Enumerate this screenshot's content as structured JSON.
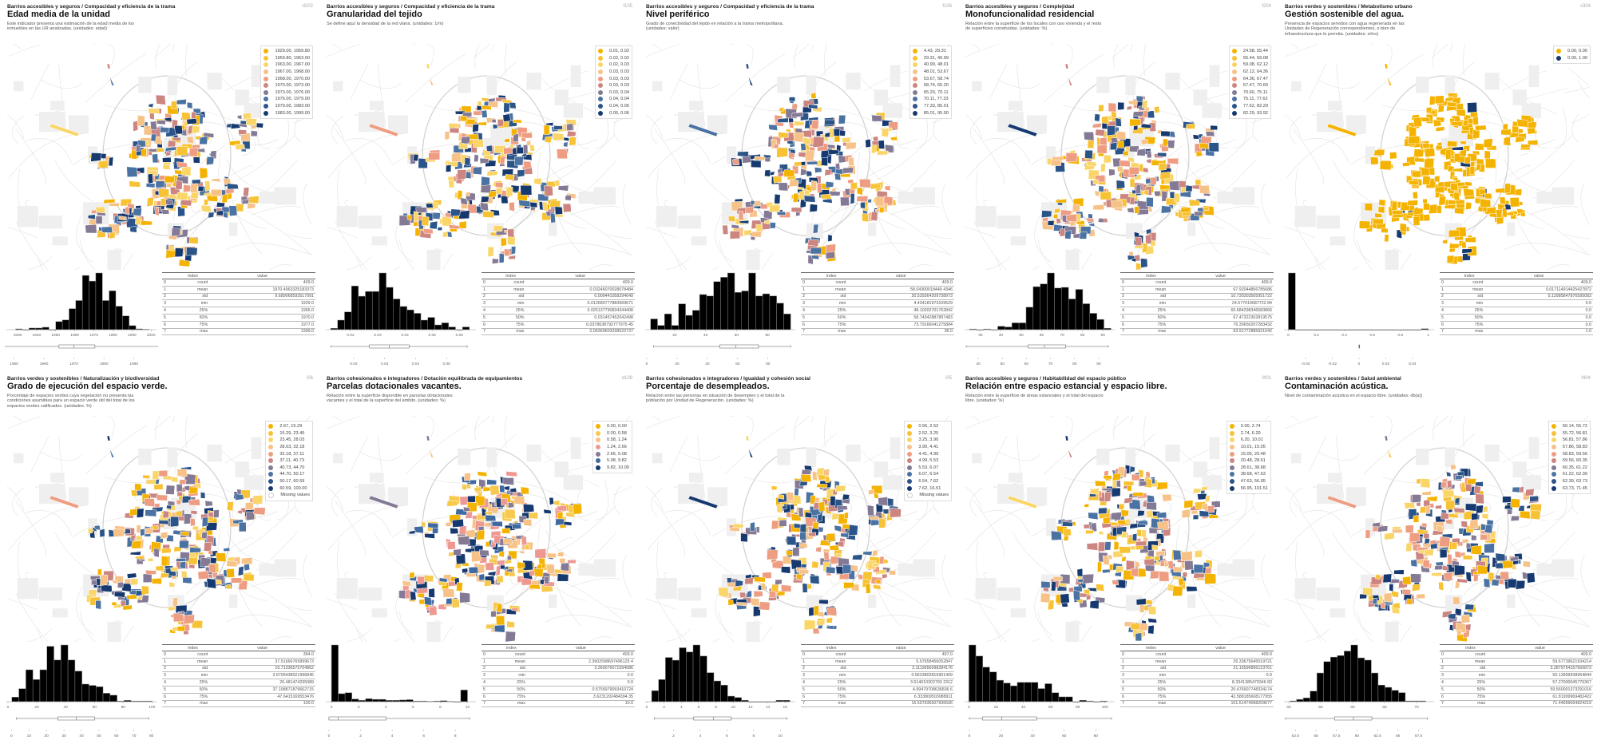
{
  "palette_10": [
    "#f5b301",
    "#f7c233",
    "#fad567",
    "#f7c287",
    "#ee9d82",
    "#cc8580",
    "#857a95",
    "#4a72a2",
    "#2b5488",
    "#163a70"
  ],
  "palette_7": [
    "#f5b301",
    "#f7c94d",
    "#f7c287",
    "#ee9891",
    "#857a95",
    "#3f6aa1",
    "#163a70"
  ],
  "palette_2": [
    "#f5b301",
    "#163a70"
  ],
  "stats_headers": {
    "index": "index",
    "value": "value"
  },
  "stats_labels": [
    "count",
    "mean",
    "std",
    "min",
    "25%",
    "50%",
    "75%",
    "max"
  ],
  "stats_indices": [
    "0",
    "1",
    "2",
    "3",
    "4",
    "5",
    "6",
    "7"
  ],
  "missing_label": "Missing values",
  "panels": [
    {
      "crumb": "Barrios accesibles y seguros / Compacidad y eficiencia de la trama",
      "title": "Edad media de la unidad",
      "code": "d202",
      "desc": "Este indicador presenta una estimación de la edad media de los inmuebles en las UR analizadas. (unidades: edad)",
      "legend": [
        "1929.00, 1959.80",
        "1959.80, 1963.00",
        "1963.00, 1967.00",
        "1967.00, 1968.00",
        "1968.00, 1970.00",
        "1970.00, 1973.00",
        "1973.00, 1976.00",
        "1976.00, 1979.00",
        "1979.00, 1983.00",
        "1983.00, 1999.00"
      ],
      "missing": false,
      "stats": [
        "409.0",
        "1970.4963325183373",
        "9.689068593517991",
        "1929.0",
        "1965.0",
        "1970.0",
        "1977.0",
        "1999.0"
      ]
    },
    {
      "crumb": "Barrios accesibles y seguros / Compacidad y eficiencia de la trama",
      "title": "Granularidad del tejido",
      "code": "f105",
      "desc": "Se define aquí la densidad de la red viaria. (unidades: 1/m)",
      "legend": [
        "0.01, 0.02",
        "0.02, 0.02",
        "0.02, 0.03",
        "0.03, 0.03",
        "0.03, 0.03",
        "0.03, 0.03",
        "0.03, 0.04",
        "0.04, 0.04",
        "0.04, 0.05",
        "0.05, 0.06"
      ],
      "missing": false,
      "stats": [
        "409.0",
        "0.03246070028078484",
        "0.009441058294649",
        "0.012680777883569671",
        "0.025137790834344408",
        "0.031457452042498",
        "0.0378638792777975 45",
        "0.06369603298522737"
      ]
    },
    {
      "crumb": "Barrios accesibles y seguros / Compacidad y eficiencia de la trama",
      "title": "Nivel periférico",
      "code": "f106",
      "desc": "Grado de conectividad del tejido en relación a la trama metropolitana. (unidades: valor)",
      "legend": [
        "4.43, 29.31",
        "29.31, 40.99",
        "40.99, 48.01",
        "48.01, 53.67",
        "53.67, 58.74",
        "58.74, 65.20",
        "65.20, 70.11",
        "70.11, 77.33",
        "77.33, 85.01",
        "85.01, 95.00"
      ],
      "missing": false,
      "stats": [
        "409.0",
        "58.04300018449 4346",
        "20.539364209738973",
        "4.434181973109529",
        "48.10202701762842",
        "58.74342887897483",
        "73.79166041275884",
        "95.0"
      ]
    },
    {
      "crumb": "Barrios accesibles y seguros / Complejidad",
      "title": "Monofuncionalidad residencial",
      "code": "f204",
      "desc": "Relación entre la superficie de los locales con uso vivienda y el resto de superficies construidas. (unidades: %)",
      "legend": [
        "24.58, 55.44",
        "55.44, 59.08",
        "59.08, 62.12",
        "62.12, 64.36",
        "64.36, 67.47",
        "67.47, 70.60",
        "70.60, 75.11",
        "75.11, 77.62",
        "77.62, 82.29",
        "82.29, 93.92"
      ],
      "missing": false,
      "stats": [
        "409.0",
        "67.92044866785686",
        "10.730303505951722",
        "24.577019087722 84",
        "60.684298346583866",
        "67.47322302819575",
        "76.30650207283432",
        "93.91772885921042"
      ]
    },
    {
      "crumb": "Barrios verdes y sostenibles / Metabolismo urbano",
      "title": "Gestión sostenible del agua.",
      "code": "v304",
      "desc": "Presencia de espacios servidos con agua regenerada en las Unidades de Regeneración correspondientes, o bien de infraestructura que lo permita. (unidades: si/no)",
      "legend": [
        "0.00, 0.00",
        "0.00, 1.00"
      ],
      "missing": false,
      "stats": [
        "409.0",
        "0.017114914425427872",
        "0.12985847876595083",
        "0.0",
        "0.0",
        "0.0",
        "0.0",
        "1.0"
      ]
    },
    {
      "crumb": "Barrios verdes y sostenibles / Naturalización y biodiversidad",
      "title": "Grado de ejecución del espacio verde.",
      "code": "i06",
      "desc": "Porcentaje de espacios verdes cuya vegetación no presenta las condiciones asumibles para un espacio verde útil del total de los espacios verdes calificados. (unidades: %)",
      "legend": [
        "2.67, 15.29",
        "15.29, 23.45",
        "23.45, 28.03",
        "28.03, 32.18",
        "32.18, 37.11",
        "37.11, 40.73",
        "40.73, 44.70",
        "44.70, 50.17",
        "50.17, 60.59",
        "60.59, 100.00"
      ],
      "missing": true,
      "stats": [
        "394.0",
        "37.51666765899673",
        "16.71336575704862",
        "2.6705438021996846",
        "26.481474295089",
        "37.108871879662715",
        "47.6415169553476",
        "100.0"
      ]
    },
    {
      "crumb": "Barrios cohesionados e integradores / Dotación equilibrada de equipamientos",
      "title": "Parcelas dotacionales vacantes.",
      "code": "d109",
      "desc": "Relación entre la superficie disponible en parcelas dotacionales vacantes y el total de la superficie del ámbito. (unidades: %)",
      "legend": [
        "0.00, 0.00",
        "0.00, 0.58",
        "0.58, 1.24",
        "1.24, 2.66",
        "2.66, 5.08",
        "5.08, 9.82",
        "9.82, 10.00"
      ],
      "missing": false,
      "stats": [
        "409.0",
        "2.3602598697496125 4",
        "3.369076571594086",
        "0.0",
        "0.0",
        "0.5755979093410724",
        "3.6231202484394 35",
        "10.0"
      ]
    },
    {
      "crumb": "Barrios cohesionados e integradores / Igualdad y cohesión social",
      "title": "Porcentaje de desempleados.",
      "code": "i05",
      "desc": "Relación entre las personas en situación de desempleo y el total de la población por Unidad de Regeneración. (unidades: %)",
      "legend": [
        "0.56, 2.52",
        "2.52, 3.25",
        "3.25, 3.90",
        "3.90, 4.41",
        "4.41, 4.99",
        "4.99, 5.53",
        "5.53, 6.07",
        "6.07, 6.54",
        "6.54, 7.62",
        "7.62, 16.51"
      ],
      "missing": true,
      "stats": [
        "407.0",
        "5.07658456052847",
        "2.1119656098284176",
        "0.5633802816901409",
        "3.514010302793 2312",
        "4.99479708636836 6",
        "6.333809503088911",
        "16.507936507936506"
      ]
    },
    {
      "crumb": "Barrios accesibles y seguros / Habitabilidad del espacio público",
      "title": "Relación entre espacio estancial y espacio libre.",
      "code": "f401",
      "desc": "Relación entre la superficie de áreas estanciales y el total del espacio libre. (unidades: %)",
      "legend": [
        "0.00, 2.74",
        "2.74, 6.20",
        "6.20, 10.01",
        "10.01, 15.05",
        "15.05, 20.48",
        "20.48, 28.61",
        "28.61, 38.68",
        "38.68, 47.63",
        "47.63, 56.95",
        "56.95, 101.51"
      ],
      "missing": false,
      "stats": [
        "409.0",
        "26.33675645019721",
        "21.16596895123761",
        "0.0",
        "8.3341385470346 83",
        "20.476907748334174",
        "42.588185608177955",
        "101.51474098209677"
      ]
    },
    {
      "crumb": "Barrios verdes y sostenibles / Salud ambiental",
      "title": "Contaminación acústica.",
      "code": "f404",
      "desc": "Nivel de contaminación acústica en el espacio libre. (unidades: db(a))",
      "legend": [
        "50.14, 55.72",
        "55.72, 56.81",
        "56.81, 57.86",
        "57.86, 58.83",
        "58.83, 59.56",
        "59.56, 60.35",
        "60.35, 61.22",
        "61.22, 62.39",
        "62.39, 63.73",
        "63.73, 71.45"
      ],
      "missing": false,
      "stats": [
        "409.0",
        "59.67739621934214",
        "3.2879754167560873",
        "50.13999938964844",
        "57.27000045776367",
        "59.560001373291016",
        "61.81999969482422",
        "71.44999694824219"
      ]
    }
  ],
  "chart_data": [
    {
      "type": "bar",
      "title": "Edad media de la unidad",
      "xlim": [
        1925,
        2002
      ],
      "bin_start": 1929,
      "bin_width": 3.5,
      "values": [
        1,
        0,
        2,
        2,
        3,
        0,
        10,
        12,
        26,
        36,
        67,
        60,
        70,
        36,
        48,
        29,
        17,
        5,
        1,
        0.5
      ],
      "xticks": [
        1930,
        1940,
        1950,
        1960,
        1970,
        1980,
        1990,
        2000
      ],
      "box": {
        "whislo": 1929,
        "q1": 1965,
        "med": 1970,
        "q3": 1977,
        "whishi": 1999
      },
      "box_xlim": [
        1948,
        1997
      ],
      "box_xticks": [
        1950,
        1960,
        1970,
        1980,
        1990
      ]
    },
    {
      "type": "bar",
      "title": "Granularidad del tejido",
      "xlim": [
        0.0115,
        0.0655
      ],
      "bin_start": 0.0127,
      "bin_width": 0.00255,
      "values": [
        2,
        14,
        26,
        64,
        49,
        56,
        56,
        83,
        62,
        45,
        34,
        29,
        24,
        14,
        18,
        7,
        10,
        4,
        0,
        4
      ],
      "xticks": [
        0.02,
        0.03,
        0.04,
        0.05,
        0.06
      ],
      "box": {
        "whislo": 0.0127,
        "q1": 0.0251,
        "med": 0.0315,
        "q3": 0.0379,
        "whishi": 0.0567
      },
      "box_xlim": [
        0.0115,
        0.059
      ],
      "box_xticks": [
        0.02,
        0.03,
        0.04,
        0.05
      ]
    },
    {
      "type": "bar",
      "title": "Nivel periférico",
      "xlim": [
        2,
        97
      ],
      "bin_start": 4.43,
      "bin_width": 4.53,
      "values": [
        15,
        6,
        22,
        6,
        36,
        20,
        27,
        49,
        47,
        67,
        73,
        79,
        52,
        54,
        79,
        47,
        50,
        47,
        37,
        22
      ],
      "xticks": [
        20,
        40,
        60,
        80
      ],
      "box": {
        "whislo": 4.43,
        "q1": 48.1,
        "med": 58.7,
        "q3": 73.8,
        "whishi": 95
      },
      "box_xlim": [
        0,
        97
      ],
      "box_xticks": [
        0,
        20,
        40,
        60,
        80
      ]
    },
    {
      "type": "bar",
      "title": "Monofuncionalidad residencial",
      "xlim": [
        23,
        95
      ],
      "bin_start": 24.58,
      "bin_width": 3.47,
      "values": [
        1,
        0,
        1,
        0,
        5,
        4,
        10,
        10,
        33,
        63,
        67,
        83,
        61,
        62,
        45,
        59,
        38,
        24,
        15,
        2
      ],
      "xticks": [
        30,
        40,
        50,
        60,
        70,
        80,
        90
      ],
      "box": {
        "whislo": 35,
        "q1": 60.7,
        "med": 67.5,
        "q3": 76.3,
        "whishi": 94
      },
      "box_xlim": [
        35,
        96
      ],
      "box_xticks": [
        40,
        50,
        60,
        70,
        80,
        90
      ]
    },
    {
      "type": "bar",
      "title": "Gestión sostenible del agua.",
      "xlim": [
        -0.02,
        1.03
      ],
      "bin_start": 0,
      "bin_width": 0.05,
      "values": [
        402,
        0,
        0,
        0,
        0,
        0,
        0,
        0,
        0,
        0,
        0,
        0,
        0,
        0,
        0,
        0,
        0,
        0,
        0,
        7
      ],
      "xticks": [
        0.0,
        0.2,
        0.4,
        0.6,
        0.8,
        1.0
      ],
      "box": {
        "whislo": 0,
        "q1": 0,
        "med": 0,
        "q3": 0,
        "whishi": 0
      },
      "box_xlim": [
        -0.055,
        0.055
      ],
      "box_xticks": [
        -0.04,
        -0.02,
        0.0,
        0.02,
        0.04
      ]
    },
    {
      "type": "bar",
      "title": "Grado de ejecución del espacio verde.",
      "xlim": [
        0,
        102
      ],
      "bin_start": 2.67,
      "bin_width": 4.87,
      "values": [
        7,
        20,
        49,
        34,
        49,
        85,
        64,
        87,
        64,
        47,
        27,
        25,
        23,
        13,
        10,
        1,
        2,
        1,
        1,
        1
      ],
      "xticks": [
        0,
        20,
        40,
        60,
        80,
        100
      ],
      "box": {
        "whislo": 2.67,
        "q1": 26.5,
        "med": 37.1,
        "q3": 47.6,
        "whishi": 78.5
      },
      "box_xlim": [
        -2,
        82
      ],
      "box_xticks": [
        0,
        10,
        20,
        30,
        40,
        50,
        60,
        70,
        80
      ]
    },
    {
      "type": "bar",
      "title": "Parcelas dotacionales vacantes.",
      "xlim": [
        -0.3,
        10.5
      ],
      "bin_start": 0,
      "bin_width": 0.5,
      "values": [
        170,
        24,
        27,
        8,
        4,
        9,
        7,
        7,
        4,
        4,
        5,
        6,
        2,
        2,
        1,
        2,
        3,
        1,
        0,
        35
      ],
      "xticks": [
        0,
        2,
        4,
        6,
        8,
        10
      ],
      "box": {
        "whislo": 0,
        "q1": 0,
        "med": 0.58,
        "q3": 3.62,
        "whishi": 8.9
      },
      "box_xlim": [
        -0.1,
        9.2
      ],
      "box_xticks": [
        0,
        2,
        4,
        6,
        8
      ]
    },
    {
      "type": "bar",
      "title": "Porcentaje de desempleados.",
      "xlim": [
        0,
        17
      ],
      "bin_start": 0.56,
      "bin_width": 0.8,
      "values": [
        8,
        16,
        32,
        30,
        39,
        36,
        41,
        33,
        21,
        15,
        12,
        4,
        3,
        1,
        0,
        0,
        0,
        0,
        1,
        1
      ],
      "xticks": [
        0,
        2,
        4,
        6,
        8,
        10,
        12,
        14,
        16
      ],
      "box": {
        "whislo": 0.56,
        "q1": 3.51,
        "med": 4.99,
        "q3": 6.33,
        "whishi": 10.5
      },
      "box_xlim": [
        0,
        11
      ],
      "box_xticks": [
        2,
        4,
        6,
        8,
        10
      ]
    },
    {
      "type": "bar",
      "title": "Relación entre espacio estancial y espacio libre.",
      "xlim": [
        -2,
        106
      ],
      "bin_start": 0,
      "bin_width": 5.08,
      "values": [
        82,
        66,
        50,
        43,
        31,
        27,
        23,
        28,
        28,
        28,
        19,
        26,
        13,
        7,
        7,
        0,
        2,
        1,
        0,
        1
      ],
      "xticks": [
        0,
        20,
        40,
        60,
        80,
        100
      ],
      "box": {
        "whislo": 0,
        "q1": 8.33,
        "med": 20.48,
        "q3": 42.59,
        "whishi": 90
      },
      "box_xlim": [
        -2,
        91
      ],
      "box_xticks": [
        0,
        20,
        40,
        60,
        80
      ]
    },
    {
      "type": "bar",
      "title": "Contaminación acústica.",
      "xlim": [
        49.5,
        72.5
      ],
      "bin_start": 50.14,
      "bin_width": 1.065,
      "values": [
        1,
        3,
        5,
        14,
        38,
        53,
        59,
        61,
        67,
        75,
        58,
        55,
        38,
        22,
        19,
        15,
        12,
        1,
        1,
        1
      ],
      "xticks": [
        50,
        55,
        60,
        65,
        70
      ],
      "box": {
        "whislo": 51.3,
        "q1": 57.27,
        "med": 59.56,
        "q3": 61.82,
        "whishi": 68.6
      },
      "box_xlim": [
        51.3,
        69.2
      ],
      "box_xticks": [
        52.5,
        55.0,
        57.5,
        60.0,
        62.5,
        65.0,
        67.5
      ]
    }
  ]
}
